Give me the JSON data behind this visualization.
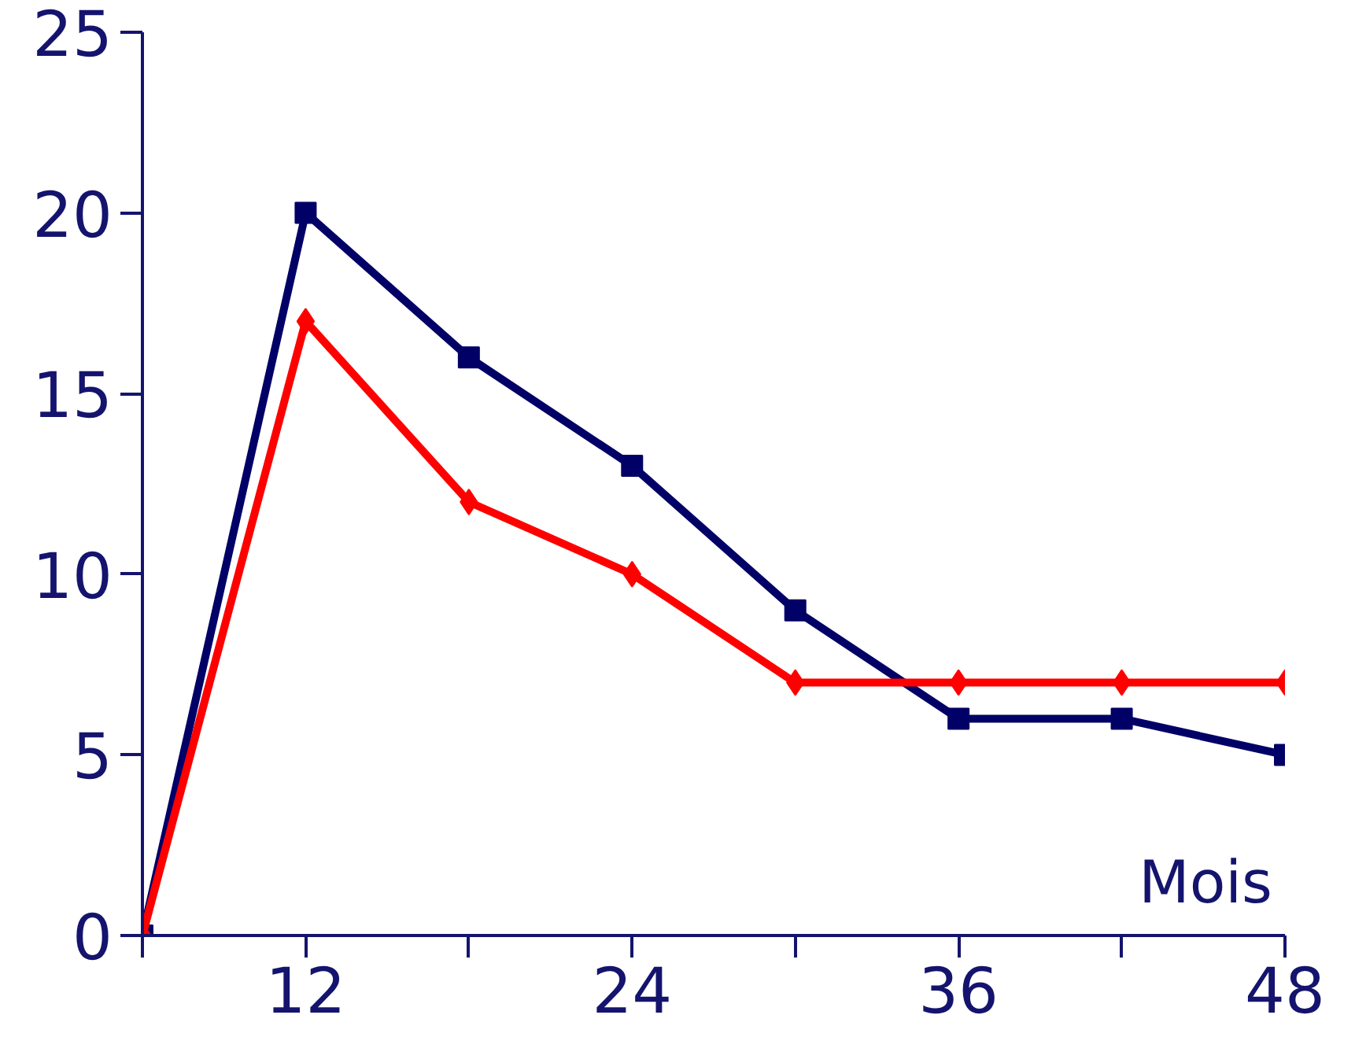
{
  "chart_data": {
    "type": "line",
    "xlabel": "Mois",
    "x": [
      6,
      12,
      18,
      24,
      30,
      36,
      42,
      48
    ],
    "series": [
      {
        "color": "#000066",
        "values": [
          0,
          20,
          16,
          13,
          9,
          6,
          6,
          5
        ],
        "marker": "square"
      },
      {
        "color": "#ff0000",
        "values": [
          0,
          17,
          12,
          10,
          7,
          7,
          7,
          7
        ],
        "marker": "diamond"
      }
    ],
    "xlim": [
      6,
      48
    ],
    "xticks": [
      {
        "value": 6,
        "label": null
      },
      12,
      {
        "value": 18,
        "label": null
      },
      24,
      {
        "value": 30,
        "label": null
      },
      36,
      {
        "value": 42,
        "label": null
      },
      48
    ],
    "ylim": [
      0,
      25
    ],
    "yticks": [
      0,
      5,
      10,
      15,
      20,
      25
    ]
  }
}
